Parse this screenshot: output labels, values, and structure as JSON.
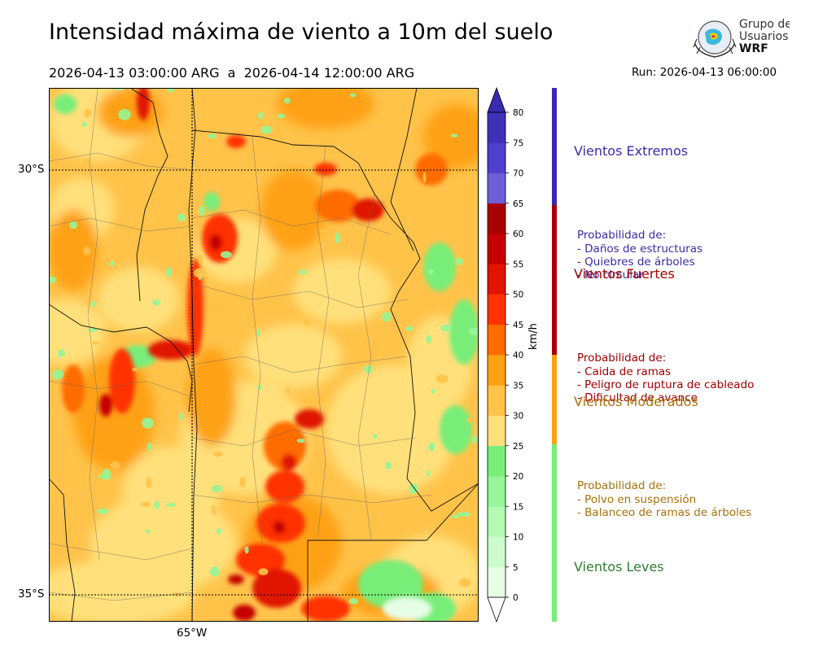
{
  "header": {
    "title": "Intensidad máxima de viento a 10m del suelo",
    "date_range": "2026-04-13 03:00:00 ARG  a  2026-04-14 12:00:00 ARG",
    "run": "Run: 2026-04-13 06:00:00"
  },
  "logo": {
    "line1": "Grupo de",
    "line2": "Usuarios",
    "line3": "WRF"
  },
  "map": {
    "lat_labels": [
      "30°S",
      "35°S"
    ],
    "lon_labels": [
      "65°W"
    ]
  },
  "colorbar": {
    "unit": "km/h",
    "ticks": [
      "0",
      "5",
      "10",
      "15",
      "20",
      "25",
      "30",
      "35",
      "40",
      "45",
      "50",
      "55",
      "60",
      "65",
      "70",
      "75",
      "80"
    ],
    "colors": [
      "#e6fde6",
      "#ccfccc",
      "#b3fab3",
      "#96f596",
      "#78ee78",
      "#ffe07a",
      "#ffc34a",
      "#ffa114",
      "#ff6c00",
      "#ff3300",
      "#e01400",
      "#c40000",
      "#a80000",
      "#6f5ed8",
      "#503fcc",
      "#4030b8"
    ],
    "over_color": "#3a2ab0",
    "under_color": "#ffffff"
  },
  "categories": [
    {
      "name": "Vientos Extremos",
      "color": "#3a2ab0",
      "text_color": "#3a2aa8",
      "desc": [
        "Probabilidad de:",
        "- Daños de estructuras",
        "- Quiebres de árboles",
        "- No circular"
      ]
    },
    {
      "name": "Vientos Fuertes",
      "color": "#a80000",
      "text_color": "#a00000",
      "desc": [
        "Probabilidad de:",
        "- Caida de ramas",
        "- Peligro de ruptura de cableado",
        "- Dificultad de avance"
      ]
    },
    {
      "name": "Vientos Moderados",
      "color": "#ffa114",
      "text_color": "#a8700a",
      "desc": [
        "Probabilidad de:",
        "- Polvo en suspensión",
        "- Balanceo de ramas de árboles"
      ]
    },
    {
      "name": "Vientos Leves",
      "color": "#78ee78",
      "text_color": "#2e7d32",
      "desc": []
    }
  ]
}
